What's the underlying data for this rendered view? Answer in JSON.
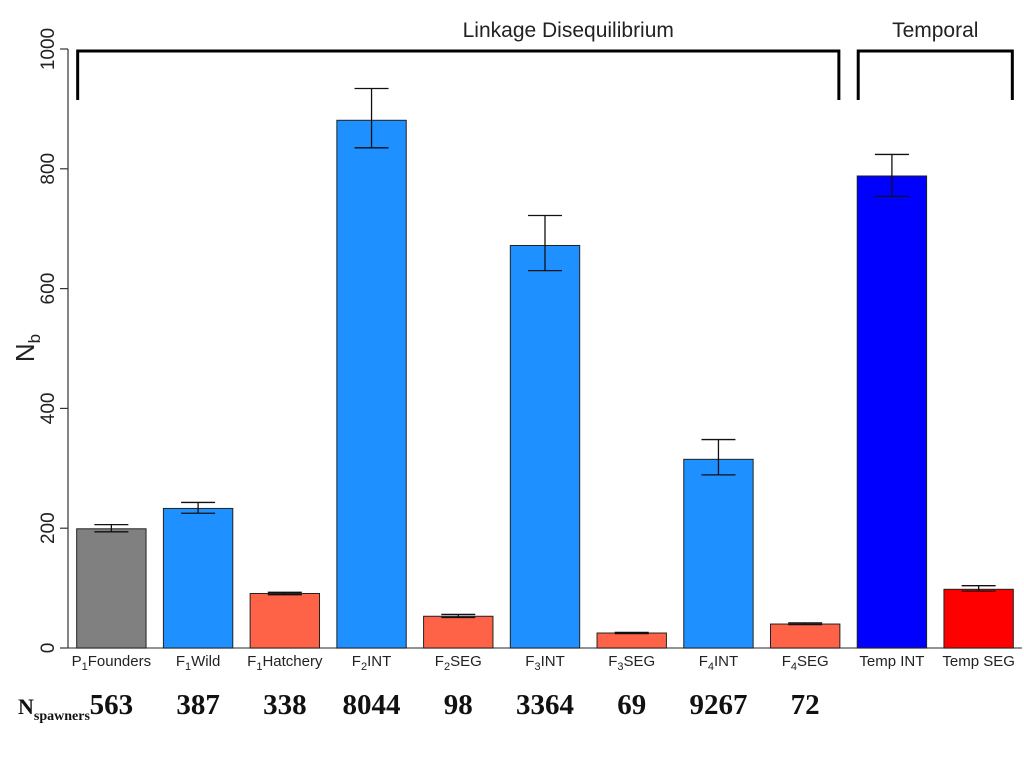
{
  "chart_data": {
    "type": "bar",
    "ylabel_main": "N",
    "ylabel_sub": "b",
    "ylim": [
      0,
      1000
    ],
    "yticks": [
      0,
      200,
      400,
      600,
      800,
      1000
    ],
    "grid": false,
    "categories": [
      {
        "prefix": "P",
        "sub": "1",
        "rest": "Founders"
      },
      {
        "prefix": "F",
        "sub": "1",
        "rest": "Wild"
      },
      {
        "prefix": "F",
        "sub": "1",
        "rest": "Hatchery"
      },
      {
        "prefix": "F",
        "sub": "2",
        "rest": "INT"
      },
      {
        "prefix": "F",
        "sub": "2",
        "rest": "SEG"
      },
      {
        "prefix": "F",
        "sub": "3",
        "rest": "INT"
      },
      {
        "prefix": "F",
        "sub": "3",
        "rest": "SEG"
      },
      {
        "prefix": "F",
        "sub": "4",
        "rest": "INT"
      },
      {
        "prefix": "F",
        "sub": "4",
        "rest": "SEG"
      },
      {
        "prefix": "Temp INT",
        "sub": "",
        "rest": ""
      },
      {
        "prefix": "Temp SEG",
        "sub": "",
        "rest": ""
      }
    ],
    "values": [
      199,
      233,
      91,
      881,
      53,
      672,
      25,
      315,
      40,
      788,
      98
    ],
    "error_low": [
      194,
      225,
      89,
      835,
      51,
      630,
      24,
      289,
      39,
      754,
      95
    ],
    "error_high": [
      206,
      243,
      93,
      934,
      56,
      722,
      26,
      348,
      42,
      824,
      104
    ],
    "colors": [
      "#808080",
      "#1e90ff",
      "#ff6347",
      "#1e90ff",
      "#ff6347",
      "#1e90ff",
      "#ff6347",
      "#1e90ff",
      "#ff6347",
      "#0000ff",
      "#ff0000"
    ],
    "groups": [
      {
        "label": "Linkage Disequilibrium",
        "from": 0,
        "to": 8
      },
      {
        "label": "Temporal",
        "from": 9,
        "to": 10
      }
    ],
    "n_spawners_label_main": "N",
    "n_spawners_label_sub": "spawners",
    "n_spawners": [
      "563",
      "387",
      "338",
      "8044",
      "98",
      "3364",
      "69",
      "9267",
      "72"
    ]
  }
}
